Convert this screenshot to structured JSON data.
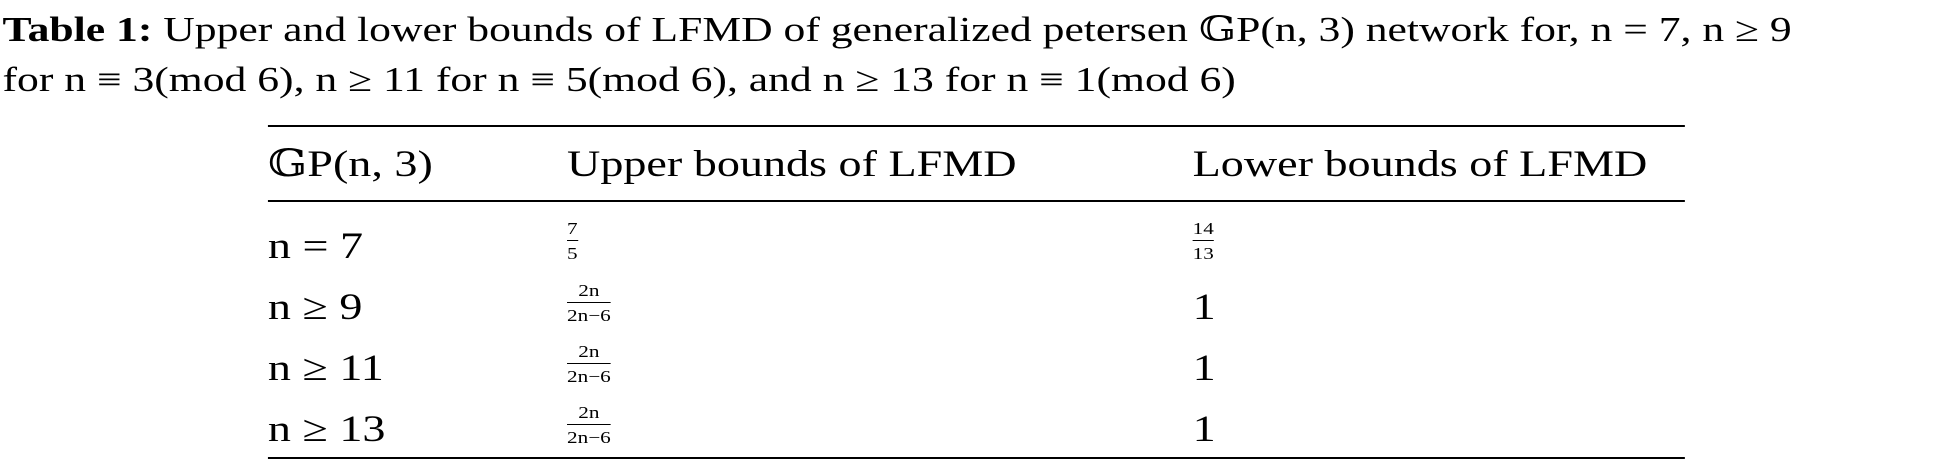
{
  "caption": {
    "label": "Table 1:",
    "line1": "Upper and lower bounds of LFMD of generalized petersen 𝔾P(n, 3) network for, n = 7, n ≥ 9",
    "line2": "for n ≡ 3(mod 6), n ≥ 11 for n ≡ 5(mod 6), and n ≥ 13 for n ≡ 1(mod 6)"
  },
  "table": {
    "headers": [
      "𝔾P(n, 3)",
      "Upper bounds of LFMD",
      "Lower bounds of LFMD"
    ],
    "rows": [
      {
        "n": "n = 7",
        "upper_num": "7",
        "upper_den": "5",
        "lower_num": "14",
        "lower_den": "13"
      },
      {
        "n": "n ≥ 9",
        "upper_num": "2n",
        "upper_den": "2n−6",
        "lower": "1"
      },
      {
        "n": "n ≥ 11",
        "upper_num": "2n",
        "upper_den": "2n−6",
        "lower": "1"
      },
      {
        "n": "n ≥ 13",
        "upper_num": "2n",
        "upper_den": "2n−6",
        "lower": "1"
      }
    ]
  }
}
